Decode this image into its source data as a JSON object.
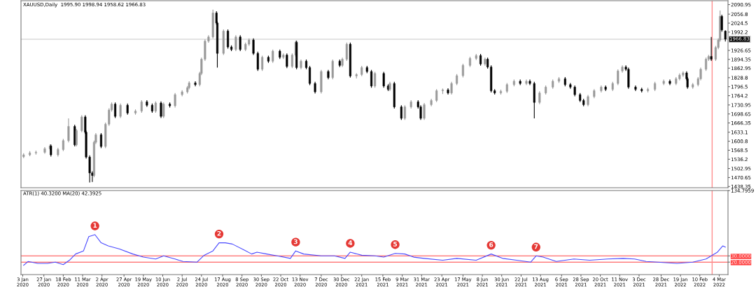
{
  "chart_data": [
    {
      "type": "candlestick",
      "title": "XAUUSD,Daily  1995.90 1998.94 1958.62 1966.83",
      "tick_labels": "y",
      "xlim": [
        "2020-01-01",
        "2022-03-14"
      ],
      "ylim": [
        1434,
        2105
      ],
      "yticks": [
        1438.35,
        1470.65,
        1502.95,
        1536.2,
        1568.5,
        1600.8,
        1633.1,
        1666.35,
        1698.65,
        1730.95,
        1764.2,
        1796.5,
        1828.8,
        1862.95,
        1894.35,
        1926.65,
        1992.2,
        2024.5,
        2056.8,
        2090.95
      ],
      "ref_lines": [
        {
          "axis": "y",
          "value": 1966.83,
          "label": "1966.83",
          "color": "#c8c8c8"
        },
        {
          "axis": "x",
          "value": "2022-02-24",
          "label": null,
          "color": "#ff9090"
        }
      ],
      "x": [
        "2020-01-04",
        "2020-01-11",
        "2020-01-18",
        "2020-01-28",
        "2020-02-03",
        "2020-02-04",
        "2020-02-12",
        "2020-02-18",
        "2020-02-24",
        "2020-03-02",
        "2020-03-04",
        "2020-03-10",
        "2020-03-14",
        "2020-03-15",
        "2020-03-19",
        "2020-03-22",
        "2020-03-24",
        "2020-03-26",
        "2020-04-01",
        "2020-04-06",
        "2020-04-10",
        "2020-04-13",
        "2020-04-17",
        "2020-04-23",
        "2020-05-01",
        "2020-05-10",
        "2020-05-17",
        "2020-05-23",
        "2020-05-29",
        "2020-06-02",
        "2020-06-08",
        "2020-06-11",
        "2020-06-18",
        "2020-06-24",
        "2020-07-02",
        "2020-07-08",
        "2020-07-10",
        "2020-07-17",
        "2020-07-22",
        "2020-07-24",
        "2020-07-28",
        "2020-08-01",
        "2020-08-06",
        "2020-08-10",
        "2020-08-11",
        "2020-08-18",
        "2020-08-23",
        "2020-08-27",
        "2020-09-01",
        "2020-09-06",
        "2020-09-12",
        "2020-09-16",
        "2020-09-21",
        "2020-09-26",
        "2020-10-01",
        "2020-10-08",
        "2020-10-13",
        "2020-10-21",
        "2020-10-25",
        "2020-10-29",
        "2020-11-04",
        "2020-11-08",
        "2020-11-09",
        "2020-11-14",
        "2020-11-20",
        "2020-11-24",
        "2020-11-30",
        "2020-12-07",
        "2020-12-15",
        "2020-12-20",
        "2020-12-28",
        "2020-12-31",
        "2021-01-05",
        "2021-01-09",
        "2021-01-16",
        "2021-01-22",
        "2021-01-28",
        "2021-02-02",
        "2021-02-06",
        "2021-02-16",
        "2021-02-21",
        "2021-02-23",
        "2021-02-28",
        "2021-03-08",
        "2021-03-12",
        "2021-03-19",
        "2021-03-27",
        "2021-03-30",
        "2021-04-03",
        "2021-04-11",
        "2021-04-17",
        "2021-04-24",
        "2021-04-30",
        "2021-05-04",
        "2021-05-10",
        "2021-05-17",
        "2021-05-25",
        "2021-06-01",
        "2021-06-06",
        "2021-06-11",
        "2021-06-14",
        "2021-06-18",
        "2021-06-22",
        "2021-06-29",
        "2021-07-06",
        "2021-07-14",
        "2021-07-21",
        "2021-07-28",
        "2021-08-01",
        "2021-08-06",
        "2021-08-12",
        "2021-08-19",
        "2021-08-27",
        "2021-09-03",
        "2021-09-10",
        "2021-09-16",
        "2021-09-21",
        "2021-09-27",
        "2021-10-01",
        "2021-10-06",
        "2021-10-13",
        "2021-10-21",
        "2021-10-26",
        "2021-11-03",
        "2021-11-09",
        "2021-11-14",
        "2021-11-18",
        "2021-11-21",
        "2021-11-29",
        "2021-12-06",
        "2021-12-13",
        "2021-12-21",
        "2021-12-31",
        "2022-01-07",
        "2022-01-14",
        "2022-01-18",
        "2022-01-22",
        "2022-01-26",
        "2022-01-27",
        "2022-02-02",
        "2022-02-08",
        "2022-02-11",
        "2022-02-17",
        "2022-02-20",
        "2022-02-23",
        "2022-02-28",
        "2022-03-03",
        "2022-03-05",
        "2022-03-07",
        "2022-03-11"
      ],
      "ohlc": [
        [
          1545,
          1558,
          1540,
          1552
        ],
        [
          1552,
          1565,
          1547,
          1559
        ],
        [
          1559,
          1567,
          1553,
          1561
        ],
        [
          1561,
          1580,
          1556,
          1574
        ],
        [
          1574,
          1590,
          1568,
          1584
        ],
        [
          1584,
          1589,
          1546,
          1552
        ],
        [
          1552,
          1577,
          1546,
          1571
        ],
        [
          1571,
          1609,
          1565,
          1603
        ],
        [
          1603,
          1683,
          1597,
          1654
        ],
        [
          1654,
          1660,
          1582,
          1588
        ],
        [
          1588,
          1645,
          1582,
          1639
        ],
        [
          1639,
          1694,
          1633,
          1688
        ],
        [
          1688,
          1694,
          1627,
          1633
        ],
        [
          1633,
          1639,
          1538,
          1544
        ],
        [
          1544,
          1550,
          1453,
          1487
        ],
        [
          1487,
          1493,
          1455,
          1478
        ],
        [
          1478,
          1603,
          1472,
          1597
        ],
        [
          1597,
          1630,
          1591,
          1624
        ],
        [
          1624,
          1630,
          1576,
          1582
        ],
        [
          1582,
          1668,
          1576,
          1662
        ],
        [
          1662,
          1719,
          1656,
          1713
        ],
        [
          1713,
          1740,
          1707,
          1734
        ],
        [
          1734,
          1740,
          1684,
          1690
        ],
        [
          1690,
          1736,
          1684,
          1730
        ],
        [
          1730,
          1736,
          1696,
          1702
        ],
        [
          1702,
          1715,
          1696,
          1709
        ],
        [
          1709,
          1748,
          1703,
          1742
        ],
        [
          1742,
          1748,
          1724,
          1730
        ],
        [
          1730,
          1736,
          1703,
          1709
        ],
        [
          1709,
          1744,
          1703,
          1738
        ],
        [
          1738,
          1744,
          1684,
          1690
        ],
        [
          1690,
          1740,
          1684,
          1734
        ],
        [
          1734,
          1740,
          1722,
          1728
        ],
        [
          1728,
          1774,
          1722,
          1768
        ],
        [
          1768,
          1784,
          1762,
          1778
        ],
        [
          1778,
          1799,
          1772,
          1793
        ],
        [
          1793,
          1816,
          1787,
          1810
        ],
        [
          1810,
          1816,
          1798,
          1804
        ],
        [
          1804,
          1850,
          1798,
          1844
        ],
        [
          1844,
          1901,
          1838,
          1895
        ],
        [
          1895,
          1966,
          1889,
          1960
        ],
        [
          1960,
          1981,
          1954,
          1975
        ],
        [
          1975,
          2073,
          1969,
          2061
        ],
        [
          2061,
          2067,
          2019,
          2025
        ],
        [
          2025,
          2031,
          1865,
          1916
        ],
        [
          1916,
          2002,
          1910,
          1996
        ],
        [
          1996,
          2002,
          1933,
          1939
        ],
        [
          1939,
          1945,
          1924,
          1930
        ],
        [
          1930,
          1981,
          1924,
          1975
        ],
        [
          1975,
          1981,
          1924,
          1930
        ],
        [
          1930,
          1955,
          1924,
          1949
        ],
        [
          1949,
          1970,
          1943,
          1964
        ],
        [
          1964,
          1970,
          1910,
          1916
        ],
        [
          1916,
          1922,
          1853,
          1859
        ],
        [
          1859,
          1908,
          1853,
          1902
        ],
        [
          1902,
          1908,
          1882,
          1888
        ],
        [
          1888,
          1930,
          1882,
          1924
        ],
        [
          1924,
          1930,
          1896,
          1902
        ],
        [
          1902,
          1916,
          1896,
          1910
        ],
        [
          1910,
          1916,
          1863,
          1869
        ],
        [
          1869,
          1916,
          1863,
          1910
        ],
        [
          1910,
          1962,
          1904,
          1956
        ],
        [
          1956,
          1962,
          1859,
          1865
        ],
        [
          1865,
          1894,
          1859,
          1888
        ],
        [
          1888,
          1894,
          1859,
          1865
        ],
        [
          1865,
          1871,
          1802,
          1808
        ],
        [
          1808,
          1814,
          1772,
          1778
        ],
        [
          1778,
          1857,
          1772,
          1851
        ],
        [
          1851,
          1857,
          1823,
          1829
        ],
        [
          1829,
          1894,
          1823,
          1888
        ],
        [
          1888,
          1894,
          1867,
          1873
        ],
        [
          1873,
          1901,
          1867,
          1895
        ],
        [
          1895,
          1955,
          1889,
          1949
        ],
        [
          1949,
          1955,
          1829,
          1835
        ],
        [
          1835,
          1845,
          1826,
          1840
        ],
        [
          1840,
          1871,
          1834,
          1865
        ],
        [
          1865,
          1871,
          1845,
          1851
        ],
        [
          1851,
          1857,
          1793,
          1799
        ],
        [
          1799,
          1850,
          1793,
          1844
        ],
        [
          1844,
          1850,
          1793,
          1799
        ],
        [
          1799,
          1805,
          1781,
          1787
        ],
        [
          1787,
          1814,
          1781,
          1808
        ],
        [
          1808,
          1814,
          1718,
          1724
        ],
        [
          1724,
          1730,
          1677,
          1683
        ],
        [
          1683,
          1730,
          1677,
          1724
        ],
        [
          1724,
          1748,
          1718,
          1742
        ],
        [
          1742,
          1748,
          1718,
          1724
        ],
        [
          1724,
          1730,
          1677,
          1683
        ],
        [
          1683,
          1738,
          1677,
          1732
        ],
        [
          1732,
          1753,
          1726,
          1747
        ],
        [
          1747,
          1788,
          1741,
          1782
        ],
        [
          1782,
          1790,
          1770,
          1785
        ],
        [
          1785,
          1791,
          1768,
          1774
        ],
        [
          1774,
          1814,
          1768,
          1808
        ],
        [
          1808,
          1842,
          1802,
          1836
        ],
        [
          1836,
          1879,
          1830,
          1873
        ],
        [
          1873,
          1904,
          1867,
          1898
        ],
        [
          1898,
          1914,
          1892,
          1908
        ],
        [
          1908,
          1914,
          1872,
          1878
        ],
        [
          1878,
          1901,
          1872,
          1895
        ],
        [
          1895,
          1901,
          1861,
          1867
        ],
        [
          1867,
          1873,
          1776,
          1782
        ],
        [
          1782,
          1788,
          1768,
          1774
        ],
        [
          1774,
          1786,
          1768,
          1780
        ],
        [
          1780,
          1810,
          1774,
          1804
        ],
        [
          1804,
          1822,
          1798,
          1816
        ],
        [
          1816,
          1822,
          1802,
          1808
        ],
        [
          1808,
          1822,
          1802,
          1816
        ],
        [
          1816,
          1822,
          1802,
          1808
        ],
        [
          1808,
          1814,
          1683,
          1740
        ],
        [
          1740,
          1780,
          1734,
          1774
        ],
        [
          1774,
          1801,
          1768,
          1795
        ],
        [
          1795,
          1822,
          1789,
          1816
        ],
        [
          1816,
          1831,
          1810,
          1825
        ],
        [
          1825,
          1831,
          1798,
          1804
        ],
        [
          1804,
          1810,
          1789,
          1795
        ],
        [
          1795,
          1801,
          1762,
          1768
        ],
        [
          1768,
          1774,
          1741,
          1747
        ],
        [
          1747,
          1753,
          1726,
          1732
        ],
        [
          1732,
          1767,
          1726,
          1761
        ],
        [
          1761,
          1788,
          1755,
          1782
        ],
        [
          1782,
          1801,
          1776,
          1795
        ],
        [
          1795,
          1801,
          1781,
          1787
        ],
        [
          1787,
          1814,
          1781,
          1808
        ],
        [
          1808,
          1859,
          1802,
          1853
        ],
        [
          1853,
          1873,
          1847,
          1867
        ],
        [
          1867,
          1873,
          1853,
          1859
        ],
        [
          1859,
          1865,
          1789,
          1795
        ],
        [
          1795,
          1801,
          1781,
          1787
        ],
        [
          1787,
          1793,
          1776,
          1782
        ],
        [
          1782,
          1793,
          1776,
          1787
        ],
        [
          1787,
          1814,
          1781,
          1808
        ],
        [
          1808,
          1822,
          1802,
          1816
        ],
        [
          1816,
          1822,
          1802,
          1808
        ],
        [
          1808,
          1831,
          1802,
          1825
        ],
        [
          1825,
          1844,
          1819,
          1838
        ],
        [
          1838,
          1852,
          1832,
          1846
        ],
        [
          1846,
          1852,
          1819,
          1825
        ],
        [
          1825,
          1831,
          1789,
          1795
        ],
        [
          1795,
          1810,
          1789,
          1804
        ],
        [
          1804,
          1831,
          1798,
          1825
        ],
        [
          1825,
          1865,
          1819,
          1859
        ],
        [
          1859,
          1901,
          1853,
          1895
        ],
        [
          1895,
          1911,
          1889,
          1905
        ],
        [
          1905,
          1975,
          1889,
          1895
        ],
        [
          1895,
          1943,
          1889,
          1937
        ],
        [
          1937,
          1970,
          1931,
          1964
        ],
        [
          1964,
          2070,
          1958,
          2049
        ],
        [
          2049,
          2055,
          1994,
          2000
        ],
        [
          1995.9,
          1998.94,
          1958.62,
          1966.83
        ]
      ]
    },
    {
      "type": "line",
      "title": "ATR(1) 40.3200 MA(20) 42.3925",
      "xlim": [
        "2020-01-01",
        "2022-03-14"
      ],
      "ylim": [
        0,
        134.7959
      ],
      "yticks": [
        {
          "value": 20,
          "label": "20.0000"
        },
        {
          "value": 30,
          "label": "30.0000"
        },
        134.7959
      ],
      "xticks": [
        {
          "value": "2020-01-03",
          "label": "3 Jan 2020"
        },
        {
          "value": "2020-01-27",
          "label": "27 Jan 2020"
        },
        {
          "value": "2020-02-18",
          "label": "18 Feb 2020"
        },
        {
          "value": "2020-03-11",
          "label": "11 Mar 2020"
        },
        {
          "value": "2020-04-02",
          "label": "2 Apr 2020"
        },
        {
          "value": "2020-04-27",
          "label": "27 Apr 2020"
        },
        {
          "value": "2020-05-19",
          "label": "19 May 2020"
        },
        {
          "value": "2020-06-10",
          "label": "10 Jun 2020"
        },
        {
          "value": "2020-07-02",
          "label": "2 Jul 2020"
        },
        {
          "value": "2020-07-24",
          "label": "24 Jul 2020"
        },
        {
          "value": "2020-08-17",
          "label": "17 Aug 2020"
        },
        {
          "value": "2020-09-08",
          "label": "8 Sep 2020"
        },
        {
          "value": "2020-09-30",
          "label": "30 Sep 2020"
        },
        {
          "value": "2020-10-22",
          "label": "22 Oct 2020"
        },
        {
          "value": "2020-11-13",
          "label": "13 Nov 2020"
        },
        {
          "value": "2020-12-07",
          "label": "7 Dec 2020"
        },
        {
          "value": "2020-12-30",
          "label": "30 Dec 2020"
        },
        {
          "value": "2021-01-22",
          "label": "22 Jan 2021"
        },
        {
          "value": "2021-02-15",
          "label": "15 Feb 2021"
        },
        {
          "value": "2021-03-09",
          "label": "9 Mar 2021"
        },
        {
          "value": "2021-03-31",
          "label": "31 Mar 2021"
        },
        {
          "value": "2021-04-23",
          "label": "23 Apr 2021"
        },
        {
          "value": "2021-05-17",
          "label": "17 May 2021"
        },
        {
          "value": "2021-06-08",
          "label": "8 Jun 2021"
        },
        {
          "value": "2021-06-30",
          "label": "30 Jun 2021"
        },
        {
          "value": "2021-07-22",
          "label": "22 Jul 2021"
        },
        {
          "value": "2021-08-13",
          "label": "13 Aug 2021"
        },
        {
          "value": "2021-09-06",
          "label": "6 Sep 2021"
        },
        {
          "value": "2021-09-28",
          "label": "28 Sep 2021"
        },
        {
          "value": "2021-10-20",
          "label": "20 Oct 2021"
        },
        {
          "value": "2021-11-11",
          "label": "11 Nov 2021"
        },
        {
          "value": "2021-12-03",
          "label": "3 Dec 2021"
        },
        {
          "value": "2021-12-28",
          "label": "28 Dec 2021"
        },
        {
          "value": "2022-01-19",
          "label": "19 Jan 2022"
        },
        {
          "value": "2022-02-10",
          "label": "10 Feb 2022"
        },
        {
          "value": "2022-03-04",
          "label": "4 Mar 2022"
        }
      ],
      "x": [
        "2020-01-04",
        "2020-01-09",
        "2020-01-20",
        "2020-01-31",
        "2020-02-09",
        "2020-02-18",
        "2020-02-25",
        "2020-03-03",
        "2020-03-12",
        "2020-03-18",
        "2020-03-25",
        "2020-04-01",
        "2020-04-09",
        "2020-04-22",
        "2020-05-07",
        "2020-05-19",
        "2020-06-02",
        "2020-06-11",
        "2020-06-24",
        "2020-07-03",
        "2020-07-19",
        "2020-07-27",
        "2020-08-06",
        "2020-08-13",
        "2020-08-20",
        "2020-08-28",
        "2020-09-11",
        "2020-09-19",
        "2020-09-25",
        "2020-10-06",
        "2020-10-18",
        "2020-11-02",
        "2020-11-08",
        "2020-11-17",
        "2020-12-07",
        "2020-12-22",
        "2021-01-03",
        "2021-01-09",
        "2021-01-22",
        "2021-02-06",
        "2021-02-16",
        "2021-03-01",
        "2021-03-12",
        "2021-03-22",
        "2021-04-03",
        "2021-04-24",
        "2021-05-10",
        "2021-06-01",
        "2021-06-18",
        "2021-07-01",
        "2021-07-17",
        "2021-08-02",
        "2021-08-08",
        "2021-08-16",
        "2021-08-31",
        "2021-09-20",
        "2021-10-08",
        "2021-10-28",
        "2021-11-15",
        "2021-11-28",
        "2021-12-11",
        "2021-12-24",
        "2022-01-15",
        "2022-02-02",
        "2022-02-17",
        "2022-02-24",
        "2022-03-02",
        "2022-03-08",
        "2022-03-11"
      ],
      "series": [
        {
          "color": "#4a4aff",
          "values": [
            15,
            21,
            18,
            18,
            20,
            16,
            23,
            33,
            38,
            61,
            64,
            51,
            46,
            41,
            33,
            28,
            25,
            30,
            25,
            21,
            20,
            31,
            38,
            51,
            51,
            49,
            39,
            33,
            36,
            33,
            30,
            26,
            38,
            33,
            30,
            30,
            26,
            36,
            31,
            30,
            28,
            34,
            33,
            28,
            26,
            23,
            26,
            23,
            33,
            26,
            23,
            20,
            30,
            28,
            21,
            25,
            23,
            25,
            26,
            25,
            21,
            20,
            18,
            20,
            25,
            31,
            36,
            46,
            44
          ]
        }
      ],
      "ref_lines": [
        {
          "axis": "y",
          "value": 30,
          "label": null,
          "color": "#ff4040"
        },
        {
          "axis": "y",
          "value": 20,
          "label": null,
          "color": "#ff4040"
        },
        {
          "axis": "x",
          "value": "2022-02-24",
          "label": null,
          "color": "#ff9090"
        }
      ],
      "annotations": [
        {
          "text": "1",
          "x": "2020-03-25",
          "y": 64
        },
        {
          "text": "2",
          "x": "2020-08-13",
          "y": 51
        },
        {
          "text": "3",
          "x": "2020-11-08",
          "y": 38
        },
        {
          "text": "4",
          "x": "2021-01-09",
          "y": 36
        },
        {
          "text": "5",
          "x": "2021-03-01",
          "y": 34
        },
        {
          "text": "6",
          "x": "2021-06-18",
          "y": 33
        },
        {
          "text": "7",
          "x": "2021-08-08",
          "y": 30
        }
      ]
    }
  ]
}
